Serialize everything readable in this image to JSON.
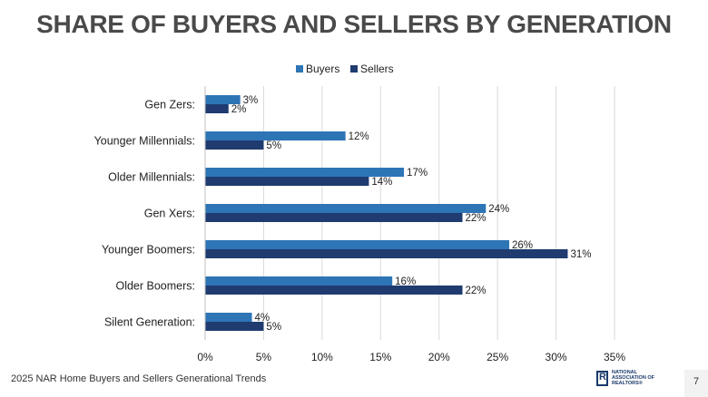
{
  "chart_data": {
    "type": "bar",
    "orientation": "horizontal",
    "title": "SHARE OF BUYERS AND SELLERS BY GENERATION",
    "categories": [
      "Gen Zers:",
      "Younger Millennials:",
      "Older Millennials:",
      "Gen Xers:",
      "Younger Boomers:",
      "Older Boomers:",
      "Silent Generation:"
    ],
    "series": [
      {
        "name": "Buyers",
        "color": "#2e75b6",
        "values": [
          3,
          12,
          17,
          24,
          26,
          16,
          4
        ]
      },
      {
        "name": "Sellers",
        "color": "#1f3b70",
        "values": [
          2,
          5,
          14,
          22,
          31,
          22,
          5
        ]
      }
    ],
    "xlim": [
      0,
      35
    ],
    "xticks": [
      "0%",
      "5%",
      "10%",
      "15%",
      "20%",
      "25%",
      "30%",
      "35%"
    ],
    "value_suffix": "%",
    "legend_position": "top",
    "grid": true
  },
  "footer": {
    "source": "2025 NAR Home Buyers and Sellers Generational Trends",
    "logo_text_1": "NATIONAL",
    "logo_text_2": "ASSOCIATION OF",
    "logo_text_3": "REALTORS®",
    "page_number": "7"
  }
}
